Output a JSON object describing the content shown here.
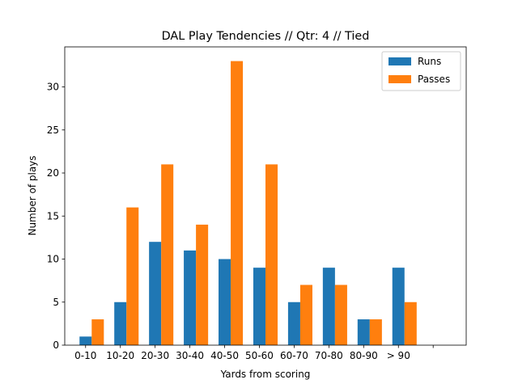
{
  "chart_data": {
    "type": "bar",
    "title": "DAL Play Tendencies // Qtr: 4 // Tied",
    "xlabel": "Yards from scoring",
    "ylabel": "Number of plays",
    "categories": [
      "0-10",
      "10-20",
      "20-30",
      "30-40",
      "40-50",
      "50-60",
      "60-70",
      "70-80",
      "80-90",
      "> 90",
      ""
    ],
    "series": [
      {
        "name": "Runs",
        "color": "#1f77b4",
        "values": [
          1,
          5,
          12,
          11,
          10,
          9,
          5,
          9,
          3,
          9,
          0
        ]
      },
      {
        "name": "Passes",
        "color": "#ff7f0e",
        "values": [
          3,
          16,
          21,
          14,
          33,
          21,
          7,
          7,
          3,
          5,
          0
        ]
      }
    ],
    "ylim": [
      0,
      34.65
    ],
    "yticks": [
      0,
      5,
      10,
      15,
      20,
      25,
      30
    ],
    "legend": "top-right",
    "grid": false
  }
}
